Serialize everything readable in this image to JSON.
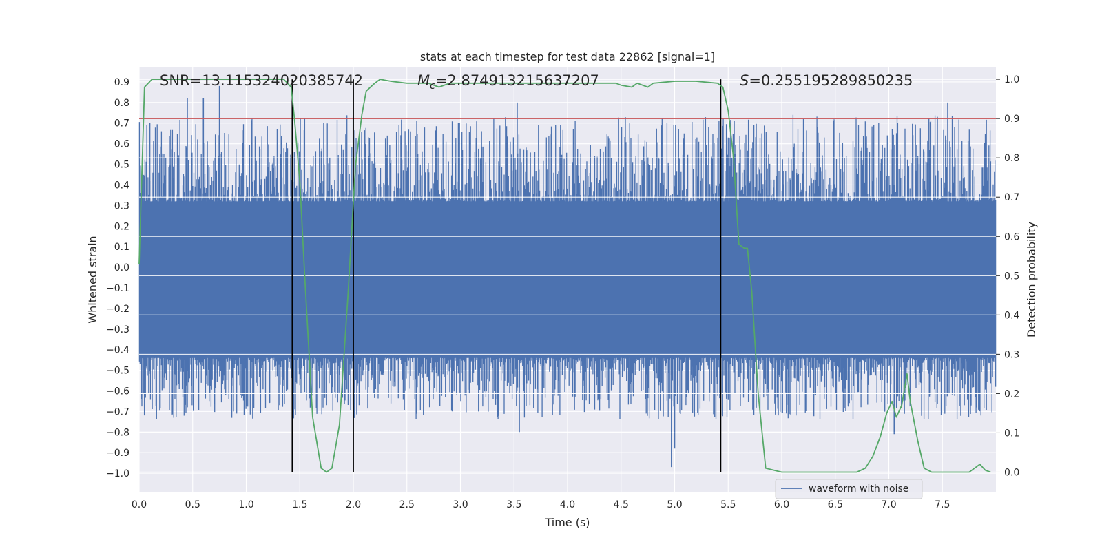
{
  "chart_data": {
    "type": "line",
    "title": "stats at each timestep for test data 22862 [signal=1]",
    "xlabel": "Time (s)",
    "ylabel": "Whitened strain",
    "y2label": "Detection probability",
    "xlim": [
      0.0,
      8.0
    ],
    "ylim": [
      -1.09,
      0.97
    ],
    "y2lim": [
      -0.05,
      1.03
    ],
    "x_ticks": [
      0.0,
      0.5,
      1.0,
      1.5,
      2.0,
      2.5,
      3.0,
      3.5,
      4.0,
      4.5,
      5.0,
      5.5,
      6.0,
      6.5,
      7.0,
      7.5
    ],
    "x_tick_labels": [
      "0.0",
      "0.5",
      "1.0",
      "1.5",
      "2.0",
      "2.5",
      "3.0",
      "3.5",
      "4.0",
      "4.5",
      "5.0",
      "5.5",
      "6.0",
      "6.5",
      "7.0",
      "7.5"
    ],
    "y_ticks": [
      0.9,
      0.8,
      0.7,
      0.6,
      0.5,
      0.4,
      0.3,
      0.2,
      0.1,
      0.0,
      -0.1,
      -0.2,
      -0.3,
      -0.4,
      -0.5,
      -0.6,
      -0.7,
      -0.8,
      -0.9,
      -1.0
    ],
    "y_tick_labels": [
      "0.9",
      "0.8",
      "0.7",
      "0.6",
      "0.5",
      "0.4",
      "0.3",
      "0.2",
      "0.1",
      "0.0",
      "−0.1",
      "−0.2",
      "−0.3",
      "−0.4",
      "−0.5",
      "−0.6",
      "−0.7",
      "−0.8",
      "−0.9",
      "−1.0"
    ],
    "y2_ticks": [
      1.0,
      0.9,
      0.8,
      0.7,
      0.6,
      0.5,
      0.4,
      0.3,
      0.2,
      0.1,
      0.0
    ],
    "y2_tick_labels": [
      "1.0",
      "0.9",
      "0.8",
      "0.7",
      "0.6",
      "0.5",
      "0.4",
      "0.3",
      "0.2",
      "0.1",
      "0.0"
    ],
    "annotations": {
      "snr": "SNR=13.115324020385742",
      "mc_symbol": "M",
      "mc_sub": "c",
      "mc_value": "=2.874913215637207",
      "s_symbol": "S",
      "s_value": "=0.255195289850235"
    },
    "threshold": {
      "value": 0.9,
      "axis": "right",
      "color": "#c44e52"
    },
    "event_markers": [
      1.43,
      2.0,
      5.43
    ],
    "legend": {
      "label": "waveform with noise",
      "location": "lower-right"
    },
    "series": [
      {
        "name": "waveform with noise",
        "axis": "left",
        "color": "#4c72b0",
        "style": "noise-band",
        "core_max": 0.32,
        "core_min": -0.44,
        "notable_spikes": [
          {
            "x": 0.02,
            "y": -0.64
          },
          {
            "x": 0.1,
            "y": 0.7
          },
          {
            "x": 0.45,
            "y": -0.68
          },
          {
            "x": 0.45,
            "y": 0.82
          },
          {
            "x": 0.6,
            "y": 0.82
          },
          {
            "x": 0.75,
            "y": 0.88
          },
          {
            "x": 0.88,
            "y": -0.7
          },
          {
            "x": 1.43,
            "y": 0.73
          },
          {
            "x": 3.53,
            "y": 0.8
          },
          {
            "x": 3.55,
            "y": -0.8
          },
          {
            "x": 4.97,
            "y": -0.97
          },
          {
            "x": 5.0,
            "y": -0.88
          },
          {
            "x": 7.55,
            "y": 0.8
          },
          {
            "x": 7.05,
            "y": -0.81
          }
        ]
      },
      {
        "name": "Detection probability",
        "axis": "right",
        "color": "#55a868",
        "x": [
          0.0,
          0.05,
          0.12,
          0.2,
          0.3,
          0.5,
          0.8,
          1.0,
          1.2,
          1.35,
          1.42,
          1.45,
          1.5,
          1.55,
          1.62,
          1.7,
          1.75,
          1.8,
          1.87,
          1.95,
          2.02,
          2.08,
          2.12,
          2.2,
          2.25,
          2.35,
          2.5,
          2.7,
          2.8,
          2.9,
          3.1,
          3.3,
          3.5,
          3.7,
          4.0,
          4.2,
          4.45,
          4.5,
          4.6,
          4.65,
          4.75,
          4.8,
          5.0,
          5.2,
          5.4,
          5.45,
          5.5,
          5.55,
          5.6,
          5.65,
          5.68,
          5.72,
          5.78,
          5.85,
          6.0,
          6.2,
          6.4,
          6.6,
          6.7,
          6.78,
          6.85,
          6.92,
          6.98,
          7.03,
          7.07,
          7.12,
          7.17,
          7.2,
          7.27,
          7.33,
          7.4,
          7.6,
          7.7,
          7.75,
          7.8,
          7.85,
          7.9,
          7.95
        ],
        "y": [
          0.53,
          0.98,
          1.0,
          1.0,
          1.0,
          1.0,
          1.0,
          1.0,
          1.0,
          1.0,
          0.98,
          0.9,
          0.74,
          0.48,
          0.14,
          0.01,
          0.0,
          0.01,
          0.12,
          0.45,
          0.78,
          0.91,
          0.97,
          0.99,
          1.0,
          0.995,
          0.99,
          0.99,
          0.98,
          0.99,
          0.99,
          0.99,
          0.99,
          0.99,
          0.99,
          0.99,
          0.99,
          0.985,
          0.98,
          0.99,
          0.98,
          0.99,
          0.995,
          0.995,
          0.99,
          0.98,
          0.92,
          0.8,
          0.58,
          0.57,
          0.57,
          0.46,
          0.2,
          0.01,
          0.0,
          0.0,
          0.0,
          0.0,
          0.0,
          0.01,
          0.04,
          0.09,
          0.15,
          0.18,
          0.14,
          0.17,
          0.25,
          0.18,
          0.08,
          0.01,
          0.0,
          0.0,
          0.0,
          0.0,
          0.01,
          0.02,
          0.005,
          0.0
        ]
      }
    ]
  }
}
